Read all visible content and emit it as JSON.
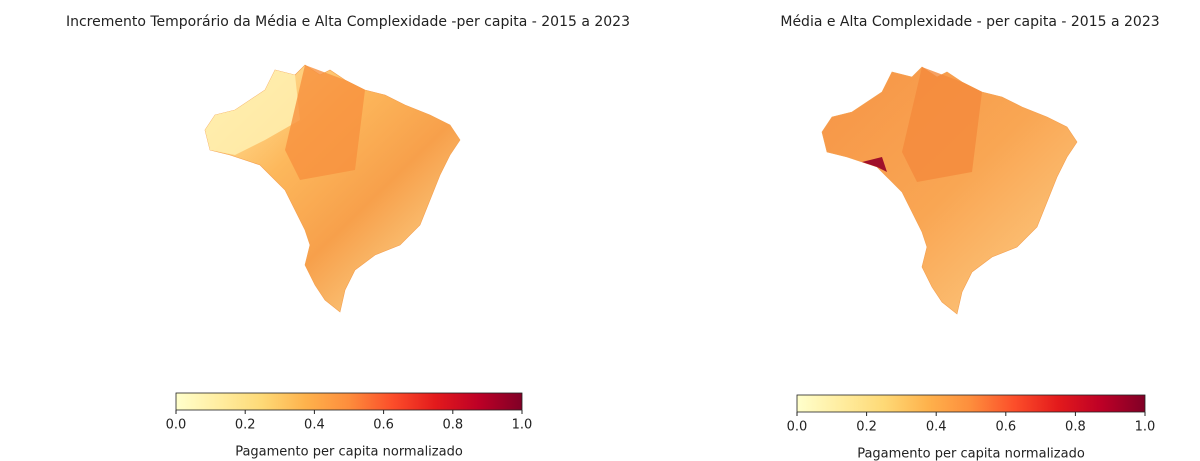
{
  "maps": [
    {
      "title": "Incremento Temporário da Média e Alta Complexidade -per capita - 2015 a 2023",
      "colorbar": {
        "label": "Pagamento per capita normalizado",
        "lim": [
          0,
          1
        ],
        "ticks": [
          {
            "value": 0,
            "label": "0.0"
          },
          {
            "value": 0.2,
            "label": "0.2"
          },
          {
            "value": 0.4,
            "label": "0.4"
          },
          {
            "value": 0.6,
            "label": "0.6"
          },
          {
            "value": 0.8,
            "label": "0.8"
          },
          {
            "value": 1,
            "label": "1.0"
          }
        ],
        "colormap": [
          "#ffffcc",
          "#ffeda0",
          "#fed976",
          "#feb24c",
          "#fd8d3c",
          "#fc4e2a",
          "#e31a1c",
          "#bd0026",
          "#800026"
        ]
      }
    },
    {
      "title": "Média e Alta Complexidade - per capita - 2015 a 2023",
      "colorbar": {
        "label": "Pagamento per capita normalizado",
        "lim": [
          0,
          1
        ],
        "ticks": [
          {
            "value": 0,
            "label": "0.0"
          },
          {
            "value": 0.2,
            "label": "0.2"
          },
          {
            "value": 0.4,
            "label": "0.4"
          },
          {
            "value": 0.6,
            "label": "0.6"
          },
          {
            "value": 0.8,
            "label": "0.8"
          },
          {
            "value": 1,
            "label": "1.0"
          }
        ],
        "colormap": [
          "#ffffcc",
          "#ffeda0",
          "#fed976",
          "#feb24c",
          "#fd8d3c",
          "#fc4e2a",
          "#e31a1c",
          "#bd0026",
          "#800026"
        ]
      }
    }
  ]
}
